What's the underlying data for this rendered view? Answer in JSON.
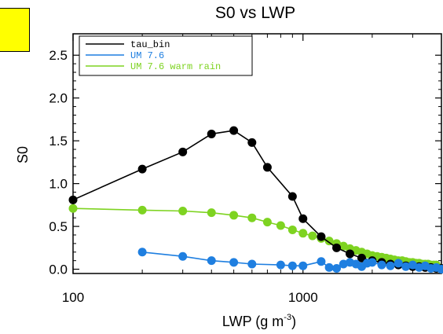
{
  "colors": {
    "series": [
      "#000000",
      "#1f7fe0",
      "#7ed321"
    ],
    "highlight_box": "#ffff00"
  },
  "chart_data": {
    "type": "line",
    "title": "S0 vs LWP",
    "xlabel": "LWP (g m",
    "xlabel_exp": "-3",
    "xlabel_close": ")",
    "ylabel": "S0",
    "xscale": "log",
    "xlim": [
      100,
      4000
    ],
    "ylim": [
      -0.05,
      2.75
    ],
    "xticks": [
      100,
      1000
    ],
    "xtick_labels": [
      "100",
      "1000"
    ],
    "yticks": [
      0.0,
      0.5,
      1.0,
      1.5,
      2.0,
      2.5
    ],
    "ytick_labels": [
      "0.0",
      "0.5",
      "1.0",
      "1.5",
      "2.0",
      "2.5"
    ],
    "legend_position": "top-left",
    "series": [
      {
        "name": "tau_bin",
        "color": "#000000",
        "x": [
          100,
          200,
          300,
          400,
          500,
          600,
          700,
          900,
          1000,
          1200,
          1400,
          1600,
          1800,
          2000,
          2200,
          2400,
          2600,
          2800,
          3000,
          3200,
          3400,
          3600,
          3800,
          4000
        ],
        "y": [
          0.81,
          1.17,
          1.37,
          1.58,
          1.62,
          1.48,
          1.19,
          0.85,
          0.59,
          0.38,
          0.25,
          0.18,
          0.13,
          0.1,
          0.08,
          0.06,
          0.05,
          0.04,
          0.03,
          0.03,
          0.02,
          0.02,
          0.01,
          0.01
        ]
      },
      {
        "name": "UM 7.6",
        "color": "#1f7fe0",
        "x": [
          200,
          300,
          400,
          500,
          600,
          800,
          900,
          1000,
          1200,
          1300,
          1400,
          1500,
          1600,
          1700,
          1800,
          1900,
          2000,
          2200,
          2400,
          2600,
          2800,
          3000,
          3200,
          3400,
          3600,
          3800,
          4000
        ],
        "y": [
          0.2,
          0.15,
          0.1,
          0.08,
          0.06,
          0.05,
          0.04,
          0.04,
          0.09,
          0.02,
          0.01,
          0.06,
          0.08,
          0.06,
          0.03,
          0.07,
          0.08,
          0.05,
          0.04,
          0.07,
          0.03,
          0.05,
          0.02,
          0.04,
          0.01,
          0.02,
          0.0
        ]
      },
      {
        "name": "UM 7.6 warm rain",
        "color": "#7ed321",
        "x": [
          100,
          200,
          300,
          400,
          500,
          600,
          700,
          800,
          900,
          1000,
          1100,
          1200,
          1300,
          1400,
          1500,
          1600,
          1700,
          1800,
          1900,
          2000,
          2100,
          2200,
          2300,
          2400,
          2500,
          2600,
          2700,
          2800,
          2900,
          3000,
          3100,
          3200,
          3300,
          3400,
          3500,
          3600,
          3700,
          3800
        ],
        "y": [
          0.71,
          0.69,
          0.68,
          0.66,
          0.63,
          0.6,
          0.55,
          0.51,
          0.46,
          0.42,
          0.39,
          0.36,
          0.33,
          0.3,
          0.27,
          0.24,
          0.22,
          0.2,
          0.18,
          0.16,
          0.15,
          0.14,
          0.13,
          0.12,
          0.11,
          0.1,
          0.1,
          0.09,
          0.08,
          0.08,
          0.07,
          0.07,
          0.06,
          0.06,
          0.06,
          0.05,
          0.05,
          0.05
        ]
      }
    ]
  }
}
